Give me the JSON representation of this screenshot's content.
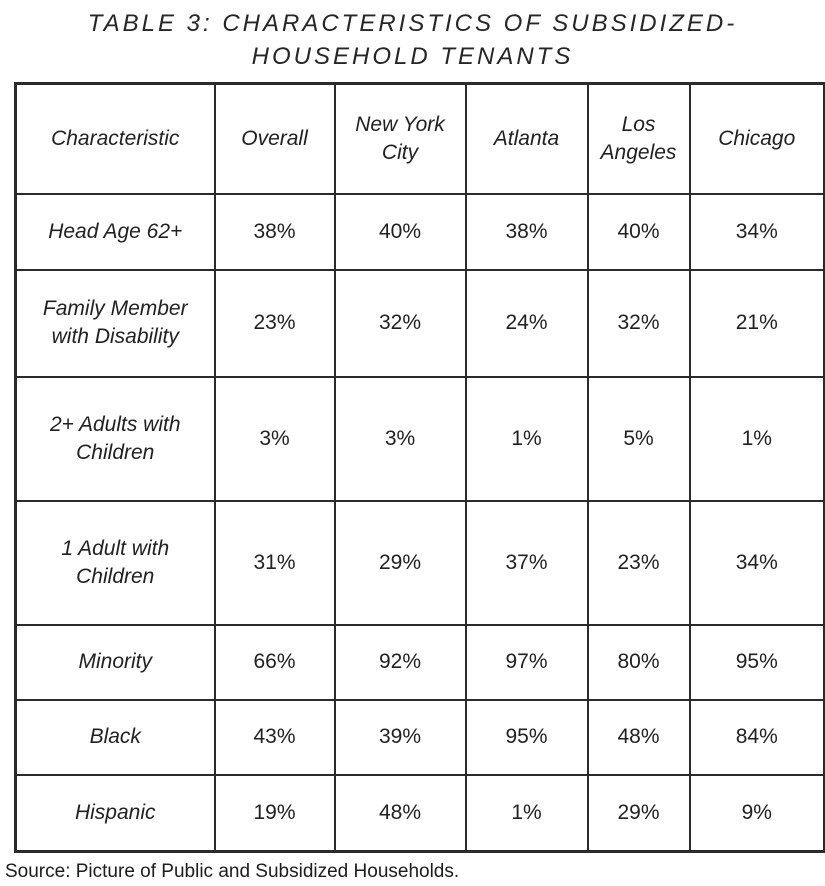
{
  "title": {
    "line1": "TABLE 3: CHARACTERISTICS OF SUBSIDIZED-",
    "line2": "HOUSEHOLD TENANTS"
  },
  "colors": {
    "text": "#212121",
    "border": "#2b2b2b",
    "background": "#ffffff"
  },
  "chart_data": {
    "type": "table",
    "title": "TABLE 3: CHARACTERISTICS OF SUBSIDIZED-HOUSEHOLD TENANTS",
    "columns": [
      "Characteristic",
      "Overall",
      "New York City",
      "Atlanta",
      "Los Angeles",
      "Chicago"
    ],
    "rows": [
      {
        "label": "Head Age 62+",
        "values": [
          "38%",
          "40%",
          "38%",
          "40%",
          "34%"
        ]
      },
      {
        "label": "Family Member with Disability",
        "values": [
          "23%",
          "32%",
          "24%",
          "32%",
          "21%"
        ]
      },
      {
        "label": "2+ Adults with Children",
        "values": [
          "3%",
          "3%",
          "1%",
          "5%",
          "1%"
        ]
      },
      {
        "label": "1 Adult with Children",
        "values": [
          "31%",
          "29%",
          "37%",
          "23%",
          "34%"
        ]
      },
      {
        "label": "Minority",
        "values": [
          "66%",
          "92%",
          "97%",
          "80%",
          "95%"
        ]
      },
      {
        "label": "Black",
        "values": [
          "43%",
          "39%",
          "95%",
          "48%",
          "84%"
        ]
      },
      {
        "label": "Hispanic",
        "values": [
          "19%",
          "48%",
          "1%",
          "29%",
          "9%"
        ]
      }
    ]
  },
  "source": "Source: Picture of Public and Subsidized Households."
}
